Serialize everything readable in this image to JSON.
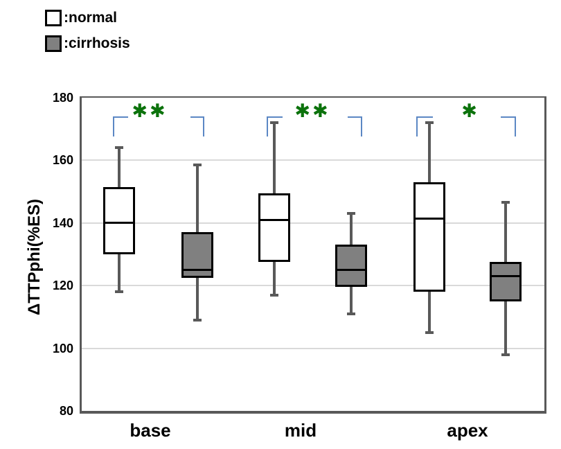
{
  "chart_data": {
    "type": "boxplot",
    "ylabel": "ΔTTPphi(%ES)",
    "ylim": [
      80,
      180
    ],
    "yticks": [
      180,
      160,
      140,
      120,
      100,
      80
    ],
    "grid": true,
    "legend_position": "top-left",
    "categories": [
      "base",
      "mid",
      "apex"
    ],
    "legend": [
      {
        "label": ":normal",
        "fill": "#ffffff"
      },
      {
        "label": ":cirrhosis",
        "fill": "#808080"
      }
    ],
    "series": [
      {
        "name": "normal",
        "fill": "#ffffff",
        "boxes": [
          {
            "category": "base",
            "min": 118,
            "q1": 130,
            "median": 140,
            "q3": 151.5,
            "max": 164
          },
          {
            "category": "mid",
            "min": 117,
            "q1": 127.5,
            "median": 141,
            "q3": 149.5,
            "max": 172
          },
          {
            "category": "apex",
            "min": 105,
            "q1": 118,
            "median": 141.5,
            "q3": 153,
            "max": 172
          }
        ]
      },
      {
        "name": "cirrhosis",
        "fill": "#808080",
        "boxes": [
          {
            "category": "base",
            "min": 109,
            "q1": 122.5,
            "median": 125,
            "q3": 137,
            "max": 158.5
          },
          {
            "category": "mid",
            "min": 111,
            "q1": 119.5,
            "median": 125,
            "q3": 133,
            "max": 143
          },
          {
            "category": "apex",
            "min": 98,
            "q1": 115,
            "median": 123,
            "q3": 127.5,
            "max": 146.5
          }
        ]
      }
    ],
    "significance": [
      {
        "category": "base",
        "label": "**"
      },
      {
        "category": "mid",
        "label": "**"
      },
      {
        "category": "apex",
        "label": "*"
      }
    ],
    "colors": {
      "box_border": "#000000",
      "whisker": "#595959",
      "grid": "#d9d9d9",
      "axis": "#595959",
      "bracket": "#5b87c4",
      "asterisk": "#0b720b"
    }
  }
}
